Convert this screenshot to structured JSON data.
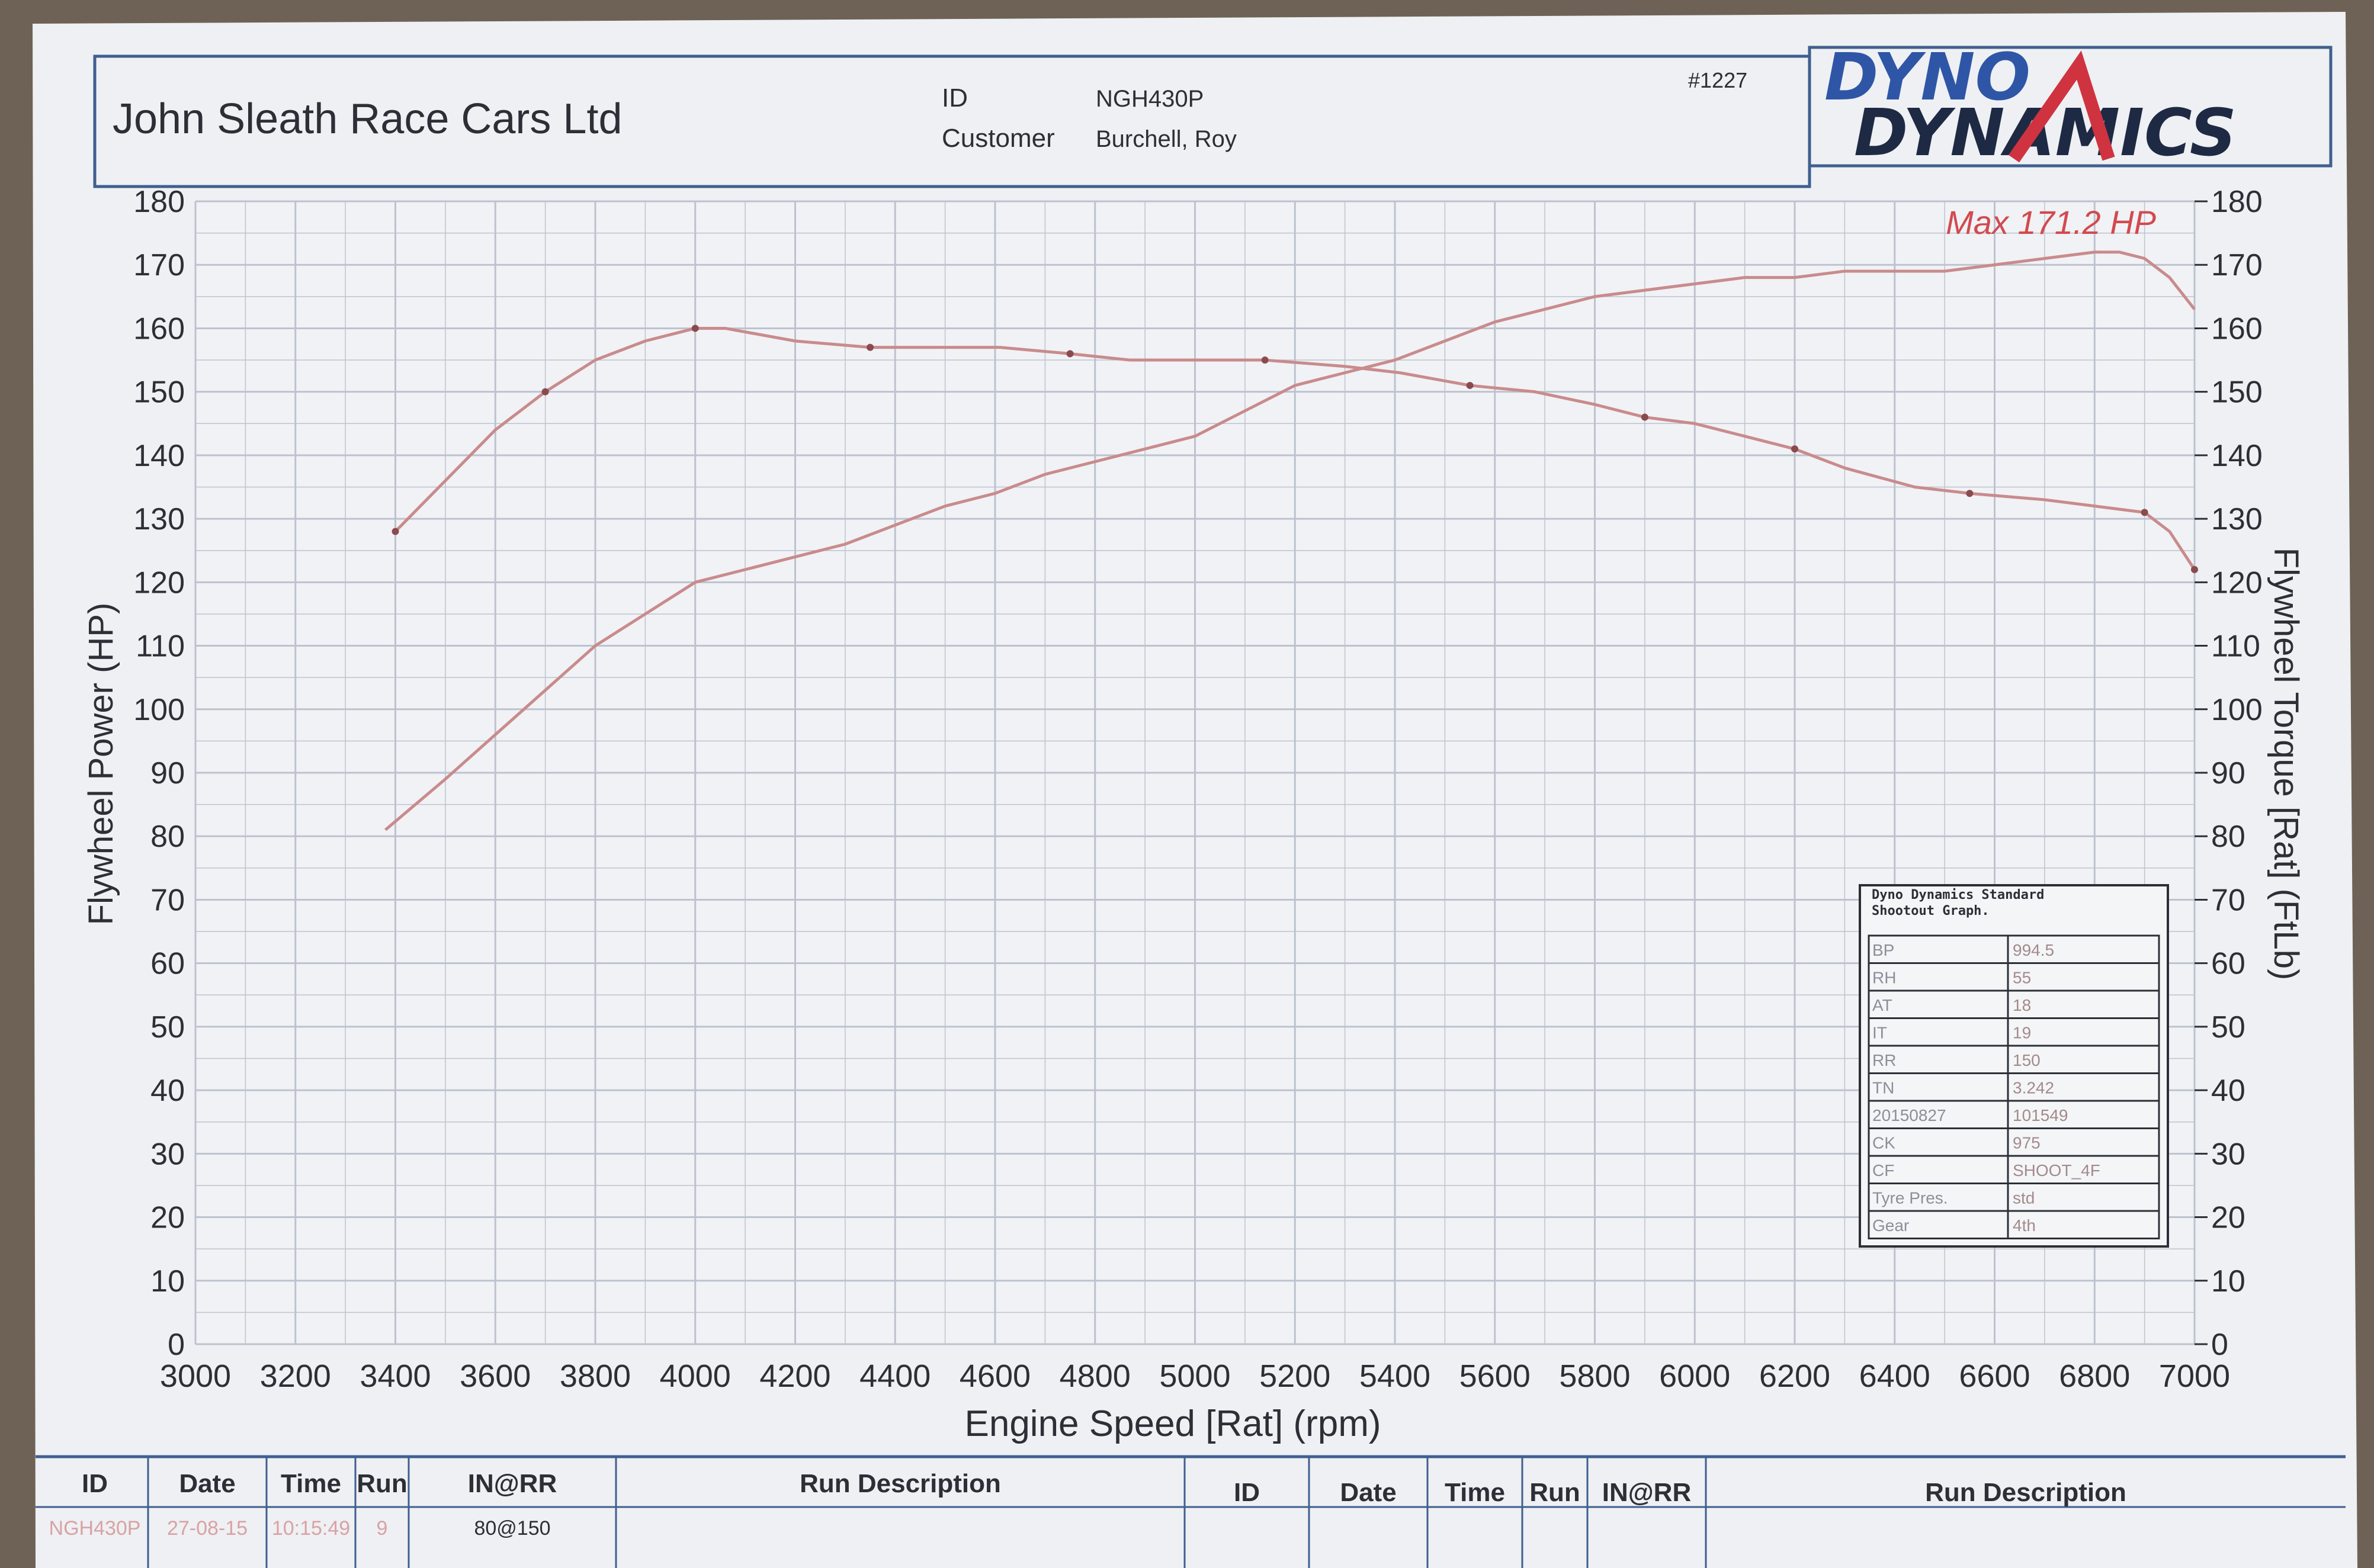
{
  "header": {
    "company": "John Sleath Race Cars Ltd",
    "id_label": "ID",
    "id_value": "NGH430P",
    "customer_label": "Customer",
    "customer_value": "Burchell, Roy",
    "sheet_number": "#1227",
    "logo_line1": "DYNO",
    "logo_line2": "DYNAMICS"
  },
  "colors": {
    "paper": "#eef0f3",
    "grid": "#bcc3cf",
    "frame": "#3f5f8f",
    "curve": "#c98b8d",
    "max_label": "#d24a4f",
    "logo_blue": "#2f56a6",
    "logo_red": "#cf3340",
    "ink": "#2c2f36"
  },
  "chart_data": {
    "type": "line",
    "xlabel": "Engine Speed [Rat] (rpm)",
    "ylabel_left": "Flywheel Power (HP)",
    "ylabel_right": "Flywheel Torque [Rat] (FtLb)",
    "xlim": [
      3000,
      7000
    ],
    "ylim_left": [
      0,
      180
    ],
    "ylim_right": [
      0,
      180
    ],
    "x_ticks": [
      "3000",
      "3200",
      "3400",
      "3600",
      "3800",
      "4000",
      "4200",
      "4400",
      "4600",
      "4800",
      "5000",
      "5200",
      "5400",
      "5600",
      "5800",
      "6000",
      "6200",
      "6400",
      "6600",
      "6800",
      "7000"
    ],
    "y_ticks_left": [
      "0",
      "10",
      "20",
      "30",
      "40",
      "50",
      "60",
      "70",
      "80",
      "90",
      "100",
      "110",
      "120",
      "130",
      "140",
      "150",
      "160",
      "170",
      "180"
    ],
    "y_ticks_right": [
      "0",
      "10",
      "20",
      "30",
      "40",
      "50",
      "60",
      "70",
      "80",
      "90",
      "100",
      "110",
      "120",
      "130",
      "140",
      "150",
      "160",
      "170",
      "180"
    ],
    "grid": true,
    "annotation": "Max 171.2 HP",
    "series": [
      {
        "axis": "left",
        "x": [
          3380,
          3500,
          3600,
          3700,
          3800,
          3900,
          4000,
          4100,
          4200,
          4300,
          4400,
          4500,
          4600,
          4700,
          4800,
          4900,
          5000,
          5100,
          5200,
          5300,
          5400,
          5500,
          5600,
          5700,
          5800,
          5900,
          6000,
          6100,
          6200,
          6300,
          6400,
          6500,
          6600,
          6700,
          6800,
          6850,
          6900,
          6950,
          7000
        ],
        "y": [
          81,
          89,
          96,
          103,
          110,
          115,
          120,
          122,
          124,
          126,
          129,
          132,
          134,
          137,
          139,
          141,
          143,
          147,
          151,
          153,
          155,
          158,
          161,
          163,
          165,
          166,
          167,
          168,
          168,
          169,
          169,
          169,
          170,
          171,
          172,
          172,
          171,
          168,
          163
        ]
      },
      {
        "axis": "right",
        "x": [
          3400,
          3500,
          3600,
          3700,
          3800,
          3900,
          4000,
          4060,
          4200,
          4350,
          4500,
          4610,
          4750,
          4870,
          5000,
          5140,
          5300,
          5410,
          5550,
          5680,
          5800,
          5900,
          6000,
          6100,
          6200,
          6300,
          6440,
          6550,
          6700,
          6800,
          6900,
          6950,
          7000
        ],
        "y": [
          128,
          136,
          144,
          150,
          155,
          158,
          160,
          160,
          158,
          157,
          157,
          157,
          156,
          155,
          155,
          155,
          154,
          153,
          151,
          150,
          148,
          146,
          145,
          143,
          141,
          138,
          135,
          134,
          133,
          132,
          131,
          128,
          122
        ]
      }
    ]
  },
  "shootout_box": {
    "title": "Dyno Dynamics Standard Shootout Graph.",
    "rows": [
      [
        "BP",
        "994.5"
      ],
      [
        "RH",
        "55"
      ],
      [
        "AT",
        "18"
      ],
      [
        "IT",
        "19"
      ],
      [
        "RR",
        "150"
      ],
      [
        "TN",
        "3.242"
      ],
      [
        "20150827",
        "101549"
      ],
      [
        "CK",
        "975"
      ],
      [
        "CF",
        "SHOOT_4F"
      ],
      [
        "Tyre Pres.",
        "std"
      ],
      [
        "Gear",
        "4th"
      ]
    ]
  },
  "footer_table": {
    "headers_left": [
      "ID",
      "Date",
      "Time",
      "Run",
      "IN@RR",
      "Run Description"
    ],
    "headers_right": [
      "ID",
      "Date",
      "Time",
      "Run",
      "IN@RR",
      "Run Description"
    ],
    "row_left": [
      "NGH430P",
      "27-08-15",
      "10:15:49",
      "9",
      "80@150",
      ""
    ]
  }
}
